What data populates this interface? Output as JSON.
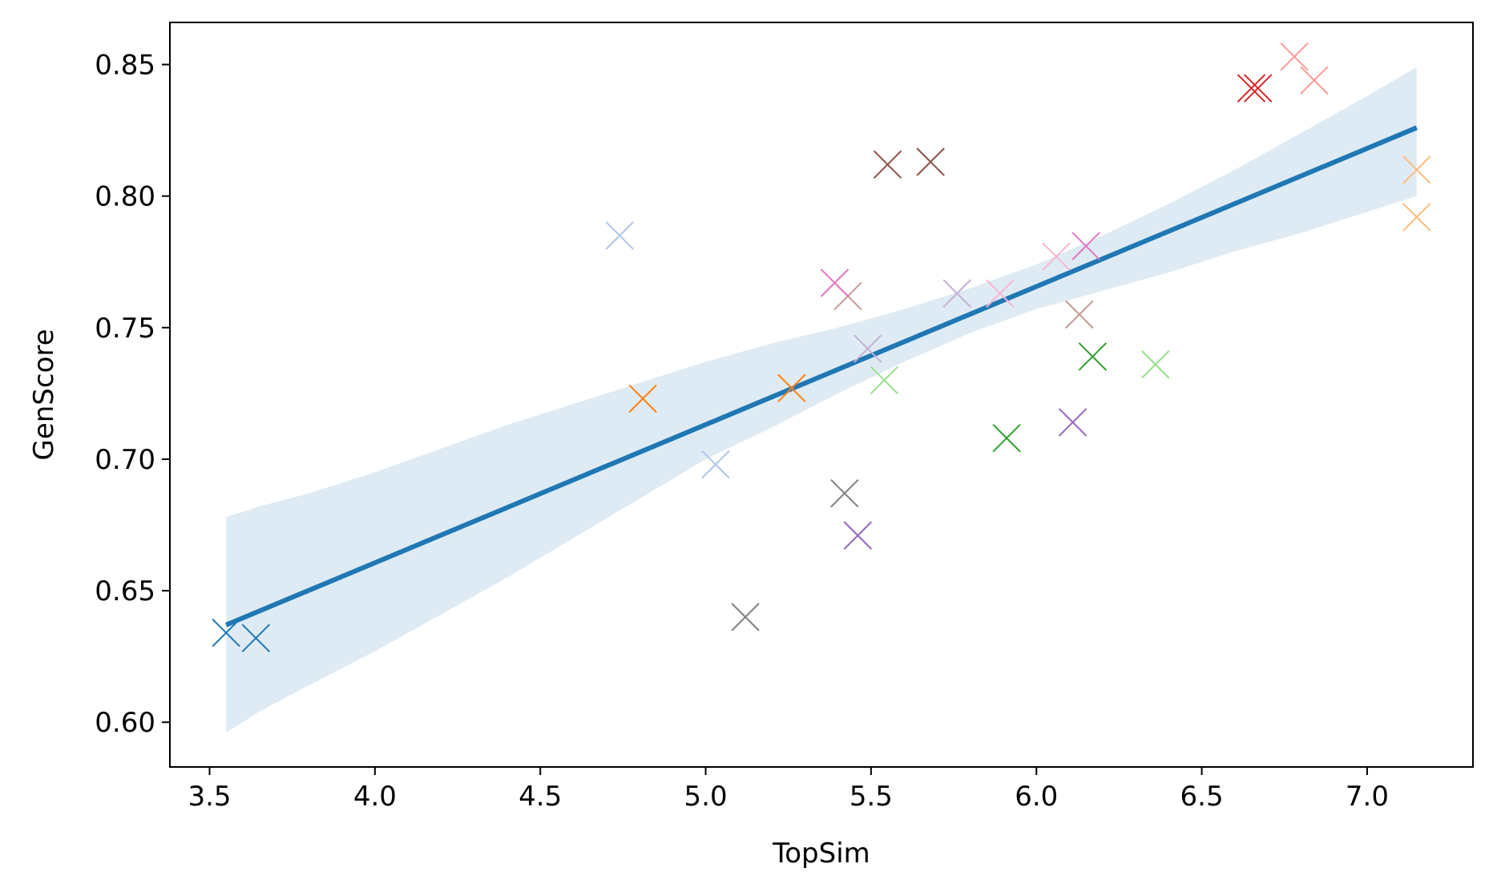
{
  "chart_data": {
    "type": "scatter",
    "title": "",
    "xlabel": "TopSim",
    "ylabel": "GenScore",
    "xlim": [
      3.38,
      7.32
    ],
    "ylim": [
      0.583,
      0.866
    ],
    "xticks": [
      3.5,
      4.0,
      4.5,
      5.0,
      5.5,
      6.0,
      6.5,
      7.0
    ],
    "xtick_labels": [
      "3.5",
      "4.0",
      "4.5",
      "5.0",
      "5.5",
      "6.0",
      "6.5",
      "7.0"
    ],
    "yticks": [
      0.6,
      0.65,
      0.7,
      0.75,
      0.8,
      0.85
    ],
    "ytick_labels": [
      "0.60",
      "0.65",
      "0.70",
      "0.75",
      "0.80",
      "0.85"
    ],
    "grid": false,
    "marker": "x",
    "points": [
      {
        "x": 3.55,
        "y": 0.634,
        "color": "#1f77b4"
      },
      {
        "x": 3.64,
        "y": 0.632,
        "color": "#1f77b4"
      },
      {
        "x": 4.74,
        "y": 0.785,
        "color": "#aec7e8"
      },
      {
        "x": 5.03,
        "y": 0.698,
        "color": "#aec7e8"
      },
      {
        "x": 4.81,
        "y": 0.723,
        "color": "#ff7f0e"
      },
      {
        "x": 5.26,
        "y": 0.727,
        "color": "#ff7f0e"
      },
      {
        "x": 7.15,
        "y": 0.81,
        "color": "#ffbb78"
      },
      {
        "x": 7.15,
        "y": 0.792,
        "color": "#ffbb78"
      },
      {
        "x": 5.91,
        "y": 0.708,
        "color": "#2ca02c"
      },
      {
        "x": 6.17,
        "y": 0.739,
        "color": "#2ca02c"
      },
      {
        "x": 5.54,
        "y": 0.73,
        "color": "#98df8a"
      },
      {
        "x": 6.36,
        "y": 0.736,
        "color": "#98df8a"
      },
      {
        "x": 6.65,
        "y": 0.841,
        "color": "#d62728"
      },
      {
        "x": 6.67,
        "y": 0.841,
        "color": "#d62728"
      },
      {
        "x": 6.78,
        "y": 0.853,
        "color": "#ff9896"
      },
      {
        "x": 6.84,
        "y": 0.844,
        "color": "#ff9896"
      },
      {
        "x": 5.46,
        "y": 0.671,
        "color": "#9467bd"
      },
      {
        "x": 6.11,
        "y": 0.714,
        "color": "#9467bd"
      },
      {
        "x": 5.49,
        "y": 0.742,
        "color": "#c5b0d5"
      },
      {
        "x": 5.76,
        "y": 0.763,
        "color": "#c5b0d5"
      },
      {
        "x": 5.55,
        "y": 0.812,
        "color": "#8c564b"
      },
      {
        "x": 5.68,
        "y": 0.813,
        "color": "#8c564b"
      },
      {
        "x": 5.43,
        "y": 0.762,
        "color": "#c49c94"
      },
      {
        "x": 6.13,
        "y": 0.755,
        "color": "#c49c94"
      },
      {
        "x": 5.39,
        "y": 0.767,
        "color": "#e377c2"
      },
      {
        "x": 6.15,
        "y": 0.781,
        "color": "#e377c2"
      },
      {
        "x": 5.89,
        "y": 0.763,
        "color": "#f7b6d2"
      },
      {
        "x": 6.06,
        "y": 0.777,
        "color": "#f7b6d2"
      },
      {
        "x": 5.12,
        "y": 0.64,
        "color": "#7f7f7f"
      },
      {
        "x": 5.42,
        "y": 0.687,
        "color": "#7f7f7f"
      }
    ],
    "regression": {
      "color": "#1f77b4",
      "x": [
        3.55,
        7.15
      ],
      "y": [
        0.637,
        0.826
      ]
    },
    "confidence_band": {
      "color": "#1f77b4",
      "opacity": 0.15,
      "x": [
        3.55,
        3.65,
        3.8,
        4.0,
        4.2,
        4.4,
        4.6,
        4.8,
        5.0,
        5.2,
        5.4,
        5.6,
        5.8,
        6.0,
        6.2,
        6.4,
        6.6,
        6.8,
        7.0,
        7.15
      ],
      "upper": [
        0.678,
        0.682,
        0.687,
        0.695,
        0.704,
        0.713,
        0.721,
        0.729,
        0.737,
        0.744,
        0.75,
        0.757,
        0.765,
        0.774,
        0.785,
        0.797,
        0.81,
        0.824,
        0.838,
        0.849
      ],
      "lower": [
        0.596,
        0.604,
        0.614,
        0.627,
        0.641,
        0.655,
        0.67,
        0.685,
        0.7,
        0.712,
        0.725,
        0.737,
        0.748,
        0.757,
        0.764,
        0.771,
        0.779,
        0.786,
        0.794,
        0.8
      ]
    }
  }
}
